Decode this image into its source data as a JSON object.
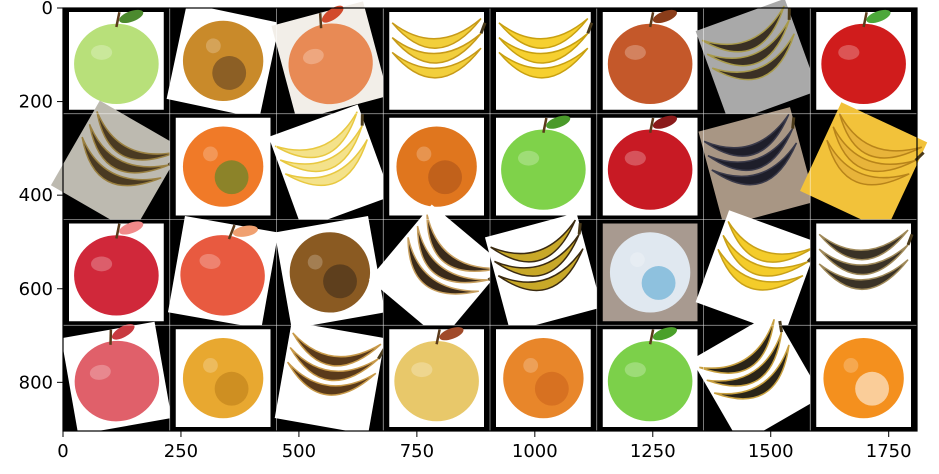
{
  "axes": {
    "x_ticks": [
      {
        "value": 0,
        "label": "0"
      },
      {
        "value": 250,
        "label": "250"
      },
      {
        "value": 500,
        "label": "500"
      },
      {
        "value": 750,
        "label": "750"
      },
      {
        "value": 1000,
        "label": "1000"
      },
      {
        "value": 1250,
        "label": "1250"
      },
      {
        "value": 1500,
        "label": "1500"
      },
      {
        "value": 1750,
        "label": "1750"
      }
    ],
    "y_ticks": [
      {
        "value": 0,
        "label": "0"
      },
      {
        "value": 200,
        "label": "200"
      },
      {
        "value": 400,
        "label": "400"
      },
      {
        "value": 600,
        "label": "600"
      },
      {
        "value": 800,
        "label": "800"
      }
    ],
    "x_range": [
      0,
      1810
    ],
    "y_range": [
      0,
      904
    ],
    "y_inverted": true
  },
  "grid": {
    "rows": 4,
    "cols": 8,
    "tiles": [
      {
        "fruit": "apple",
        "skin": "#b8e07a",
        "accent": "#4c8a2e",
        "bg": "#ffffff",
        "rot": 0
      },
      {
        "fruit": "orange",
        "skin": "#c98a2a",
        "accent": "#5a3d20",
        "bg": "#ffffff",
        "rot": 12
      },
      {
        "fruit": "apple",
        "skin": "#e88a55",
        "accent": "#d24a2c",
        "bg": "#f2eee8",
        "rot": -15
      },
      {
        "fruit": "banana",
        "skin": "#f2cf3c",
        "accent": "#c79a18",
        "bg": "#ffffff",
        "rot": 0
      },
      {
        "fruit": "banana",
        "skin": "#f6d030",
        "accent": "#c8a010",
        "bg": "#ffffff",
        "rot": 0
      },
      {
        "fruit": "apple",
        "skin": "#c4582a",
        "accent": "#8a3d1a",
        "bg": "#ffffff",
        "rot": 0
      },
      {
        "fruit": "banana",
        "skin": "#3a3024",
        "accent": "#a89a4a",
        "bg": "#a9a9a9",
        "rot": -20
      },
      {
        "fruit": "apple",
        "skin": "#d01c1c",
        "accent": "#4ca83a",
        "bg": "#ffffff",
        "rot": 0
      },
      {
        "fruit": "banana",
        "skin": "#4a3a22",
        "accent": "#9a8040",
        "bg": "#bdbab0",
        "rot": 30
      },
      {
        "fruit": "orange",
        "skin": "#f07a28",
        "accent": "#3a8a2a",
        "bg": "#ffffff",
        "rot": 0
      },
      {
        "fruit": "banana",
        "skin": "#f4e28a",
        "accent": "#e8c840",
        "bg": "#ffffff",
        "rot": -20
      },
      {
        "fruit": "orange",
        "skin": "#e0761e",
        "accent": "#a8501a",
        "bg": "#ffffff",
        "rot": 0
      },
      {
        "fruit": "apple",
        "skin": "#7fd24a",
        "accent": "#4a9a2a",
        "bg": "#ffffff",
        "rot": 0
      },
      {
        "fruit": "apple",
        "skin": "#c81a24",
        "accent": "#8a1a1a",
        "bg": "#ffffff",
        "rot": 0
      },
      {
        "fruit": "banana",
        "skin": "#1e1e2a",
        "accent": "#3a3a4a",
        "bg": "#a89684",
        "rot": -15
      },
      {
        "fruit": "banana",
        "skin": "#e8b43a",
        "accent": "#b8841a",
        "bg": "#f2c23a",
        "rot": 25
      },
      {
        "fruit": "apple",
        "skin": "#d0283a",
        "accent": "#f08a8a",
        "bg": "#ffffff",
        "rot": 0
      },
      {
        "fruit": "apple",
        "skin": "#e85a40",
        "accent": "#f0a070",
        "bg": "#ffffff",
        "rot": 10
      },
      {
        "fruit": "orange",
        "skin": "#8a5a22",
        "accent": "#3a2a1a",
        "bg": "#ffffff",
        "rot": -10
      },
      {
        "fruit": "banana",
        "skin": "#3a2a1a",
        "accent": "#c8a060",
        "bg": "#ffffff",
        "rot": 40
      },
      {
        "fruit": "banana",
        "skin": "#c8a828",
        "accent": "#3a2a10",
        "bg": "#ffffff",
        "rot": -15
      },
      {
        "fruit": "orange",
        "skin": "#e0e8f0",
        "accent": "#4aa0d0",
        "bg": "#a89a90",
        "rot": 0
      },
      {
        "fruit": "banana",
        "skin": "#f4cc2a",
        "accent": "#c8a018",
        "bg": "#ffffff",
        "rot": 20
      },
      {
        "fruit": "banana",
        "skin": "#3a3226",
        "accent": "#a08a5a",
        "bg": "#ffffff",
        "rot": 0
      },
      {
        "fruit": "apple",
        "skin": "#e0606a",
        "accent": "#c83a40",
        "bg": "#ffffff",
        "rot": -10
      },
      {
        "fruit": "orange",
        "skin": "#e8a830",
        "accent": "#b87a18",
        "bg": "#ffffff",
        "rot": 0
      },
      {
        "fruit": "banana",
        "skin": "#5a3a1a",
        "accent": "#c89a4a",
        "bg": "#ffffff",
        "rot": 10
      },
      {
        "fruit": "apple",
        "skin": "#e8c86a",
        "accent": "#a04a2a",
        "bg": "#ffffff",
        "rot": 0
      },
      {
        "fruit": "orange",
        "skin": "#e8862a",
        "accent": "#c8601a",
        "bg": "#ffffff",
        "rot": 0
      },
      {
        "fruit": "apple",
        "skin": "#7cd04a",
        "accent": "#4aa02a",
        "bg": "#ffffff",
        "rot": 0
      },
      {
        "fruit": "banana",
        "skin": "#2a2418",
        "accent": "#c8a040",
        "bg": "#ffffff",
        "rot": -30
      },
      {
        "fruit": "orange",
        "skin": "#f4901e",
        "accent": "#ffffff",
        "bg": "#ffffff",
        "rot": 0
      }
    ]
  }
}
